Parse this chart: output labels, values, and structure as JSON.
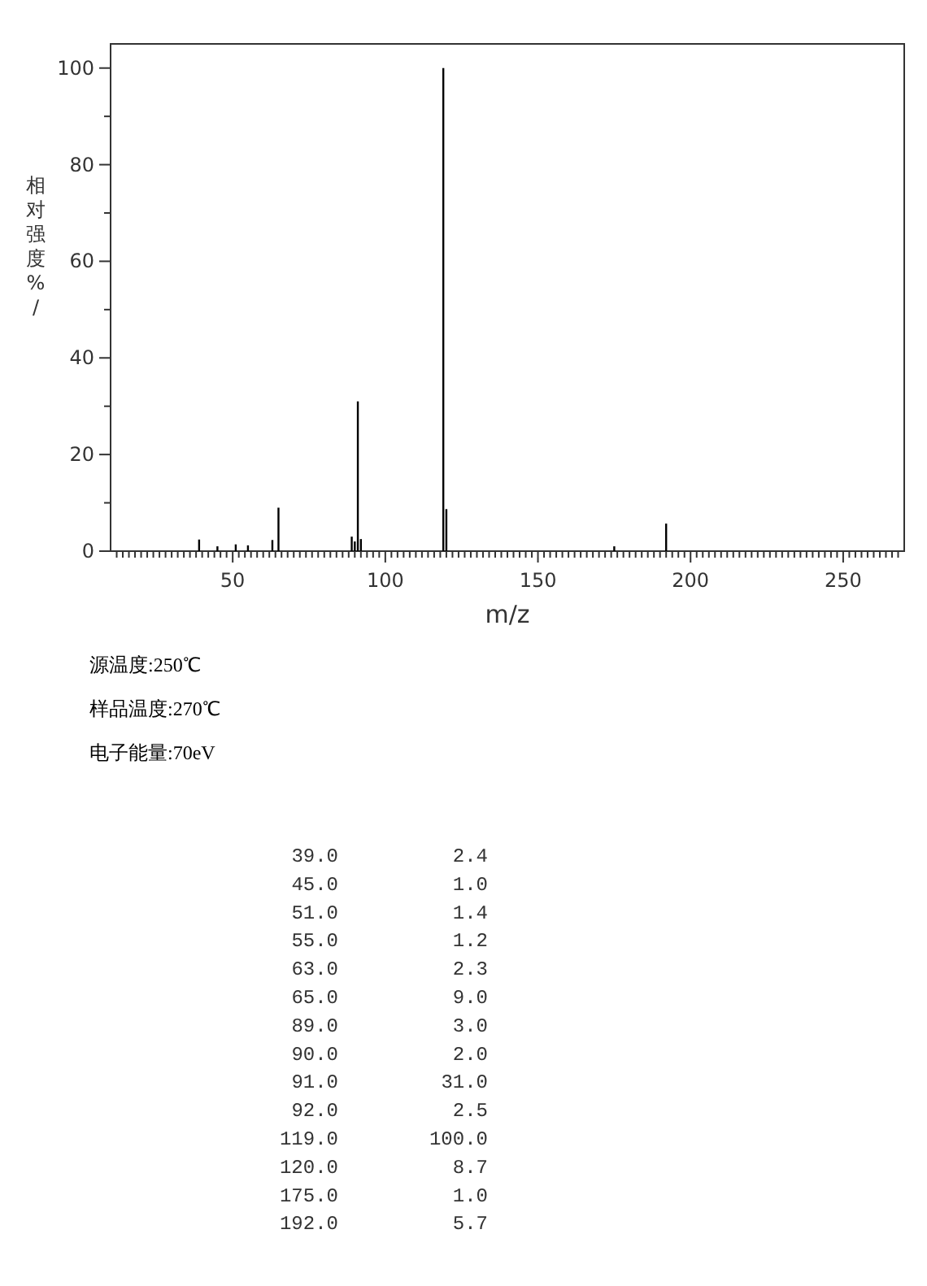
{
  "chart_data": {
    "type": "bar",
    "xlabel": "m/z",
    "ylabel": "相对强度%/",
    "x": [
      39,
      45,
      51,
      55,
      63,
      65,
      89,
      90,
      91,
      92,
      119,
      120,
      175,
      192
    ],
    "values": [
      2.4,
      1.0,
      1.4,
      1.2,
      2.3,
      9.0,
      3.0,
      2.0,
      31.0,
      2.5,
      100.0,
      8.7,
      1.0,
      5.7
    ],
    "color": "#000000",
    "xlim": [
      10,
      270
    ],
    "xticks": [
      50,
      100,
      150,
      200,
      250,
      {
        "value": 12,
        "label": null
      },
      {
        "value": 14,
        "label": null
      },
      {
        "value": 16,
        "label": null
      },
      {
        "value": 18,
        "label": null
      },
      {
        "value": 20,
        "label": null
      },
      {
        "value": 22,
        "label": null
      },
      {
        "value": 24,
        "label": null
      },
      {
        "value": 26,
        "label": null
      },
      {
        "value": 28,
        "label": null
      },
      {
        "value": 30,
        "label": null
      },
      {
        "value": 32,
        "label": null
      },
      {
        "value": 34,
        "label": null
      },
      {
        "value": 36,
        "label": null
      },
      {
        "value": 38,
        "label": null
      },
      {
        "value": 40,
        "label": null
      },
      {
        "value": 42,
        "label": null
      },
      {
        "value": 44,
        "label": null
      },
      {
        "value": 46,
        "label": null
      },
      {
        "value": 48,
        "label": null
      },
      {
        "value": 52,
        "label": null
      },
      {
        "value": 54,
        "label": null
      },
      {
        "value": 56,
        "label": null
      },
      {
        "value": 58,
        "label": null
      },
      {
        "value": 60,
        "label": null
      },
      {
        "value": 62,
        "label": null
      },
      {
        "value": 64,
        "label": null
      },
      {
        "value": 66,
        "label": null
      },
      {
        "value": 68,
        "label": null
      },
      {
        "value": 70,
        "label": null
      },
      {
        "value": 72,
        "label": null
      },
      {
        "value": 74,
        "label": null
      },
      {
        "value": 76,
        "label": null
      },
      {
        "value": 78,
        "label": null
      },
      {
        "value": 80,
        "label": null
      },
      {
        "value": 82,
        "label": null
      },
      {
        "value": 84,
        "label": null
      },
      {
        "value": 86,
        "label": null
      },
      {
        "value": 88,
        "label": null
      },
      {
        "value": 90,
        "label": null
      },
      {
        "value": 92,
        "label": null
      },
      {
        "value": 94,
        "label": null
      },
      {
        "value": 96,
        "label": null
      },
      {
        "value": 98,
        "label": null
      },
      {
        "value": 102,
        "label": null
      },
      {
        "value": 104,
        "label": null
      },
      {
        "value": 106,
        "label": null
      },
      {
        "value": 108,
        "label": null
      },
      {
        "value": 110,
        "label": null
      },
      {
        "value": 112,
        "label": null
      },
      {
        "value": 114,
        "label": null
      },
      {
        "value": 116,
        "label": null
      },
      {
        "value": 118,
        "label": null
      },
      {
        "value": 120,
        "label": null
      },
      {
        "value": 122,
        "label": null
      },
      {
        "value": 124,
        "label": null
      },
      {
        "value": 126,
        "label": null
      },
      {
        "value": 128,
        "label": null
      },
      {
        "value": 130,
        "label": null
      },
      {
        "value": 132,
        "label": null
      },
      {
        "value": 134,
        "label": null
      },
      {
        "value": 136,
        "label": null
      },
      {
        "value": 138,
        "label": null
      },
      {
        "value": 140,
        "label": null
      },
      {
        "value": 142,
        "label": null
      },
      {
        "value": 144,
        "label": null
      },
      {
        "value": 146,
        "label": null
      },
      {
        "value": 148,
        "label": null
      },
      {
        "value": 152,
        "label": null
      },
      {
        "value": 154,
        "label": null
      },
      {
        "value": 156,
        "label": null
      },
      {
        "value": 158,
        "label": null
      },
      {
        "value": 160,
        "label": null
      },
      {
        "value": 162,
        "label": null
      },
      {
        "value": 164,
        "label": null
      },
      {
        "value": 166,
        "label": null
      },
      {
        "value": 168,
        "label": null
      },
      {
        "value": 170,
        "label": null
      },
      {
        "value": 172,
        "label": null
      },
      {
        "value": 174,
        "label": null
      },
      {
        "value": 176,
        "label": null
      },
      {
        "value": 178,
        "label": null
      },
      {
        "value": 180,
        "label": null
      },
      {
        "value": 182,
        "label": null
      },
      {
        "value": 184,
        "label": null
      },
      {
        "value": 186,
        "label": null
      },
      {
        "value": 188,
        "label": null
      },
      {
        "value": 190,
        "label": null
      },
      {
        "value": 192,
        "label": null
      },
      {
        "value": 194,
        "label": null
      },
      {
        "value": 196,
        "label": null
      },
      {
        "value": 198,
        "label": null
      },
      {
        "value": 202,
        "label": null
      },
      {
        "value": 204,
        "label": null
      },
      {
        "value": 206,
        "label": null
      },
      {
        "value": 208,
        "label": null
      },
      {
        "value": 210,
        "label": null
      },
      {
        "value": 212,
        "label": null
      },
      {
        "value": 214,
        "label": null
      },
      {
        "value": 216,
        "label": null
      },
      {
        "value": 218,
        "label": null
      },
      {
        "value": 220,
        "label": null
      },
      {
        "value": 222,
        "label": null
      },
      {
        "value": 224,
        "label": null
      },
      {
        "value": 226,
        "label": null
      },
      {
        "value": 228,
        "label": null
      },
      {
        "value": 230,
        "label": null
      },
      {
        "value": 232,
        "label": null
      },
      {
        "value": 234,
        "label": null
      },
      {
        "value": 236,
        "label": null
      },
      {
        "value": 238,
        "label": null
      },
      {
        "value": 240,
        "label": null
      },
      {
        "value": 242,
        "label": null
      },
      {
        "value": 244,
        "label": null
      },
      {
        "value": 246,
        "label": null
      },
      {
        "value": 248,
        "label": null
      },
      {
        "value": 252,
        "label": null
      },
      {
        "value": 254,
        "label": null
      },
      {
        "value": 256,
        "label": null
      },
      {
        "value": 258,
        "label": null
      },
      {
        "value": 260,
        "label": null
      },
      {
        "value": 262,
        "label": null
      },
      {
        "value": 264,
        "label": null
      },
      {
        "value": 266,
        "label": null
      },
      {
        "value": 268,
        "label": null
      }
    ],
    "ylim": [
      0,
      105
    ],
    "yticks": [
      0,
      20,
      40,
      60,
      80,
      100,
      {
        "value": 10,
        "label": null
      },
      {
        "value": 30,
        "label": null
      },
      {
        "value": 50,
        "label": null
      },
      {
        "value": 70,
        "label": null
      },
      {
        "value": 90,
        "label": null
      }
    ],
    "annotations": [
      "源温度:250℃",
      "样品温度:270℃",
      "电子能量:70eV",
      "39.0",
      "2.4",
      "45.0",
      "1.0",
      "51.0",
      "1.4",
      "55.0",
      "1.2",
      "63.0",
      "2.3",
      "65.0",
      "9.0",
      "89.0",
      "3.0",
      "90.0",
      "2.0",
      "91.0",
      "31.0",
      "92.0",
      "2.5",
      "119.0",
      "100.0",
      "120.0",
      "8.7",
      "175.0",
      "1.0",
      "192.0",
      "5.7"
    ]
  }
}
